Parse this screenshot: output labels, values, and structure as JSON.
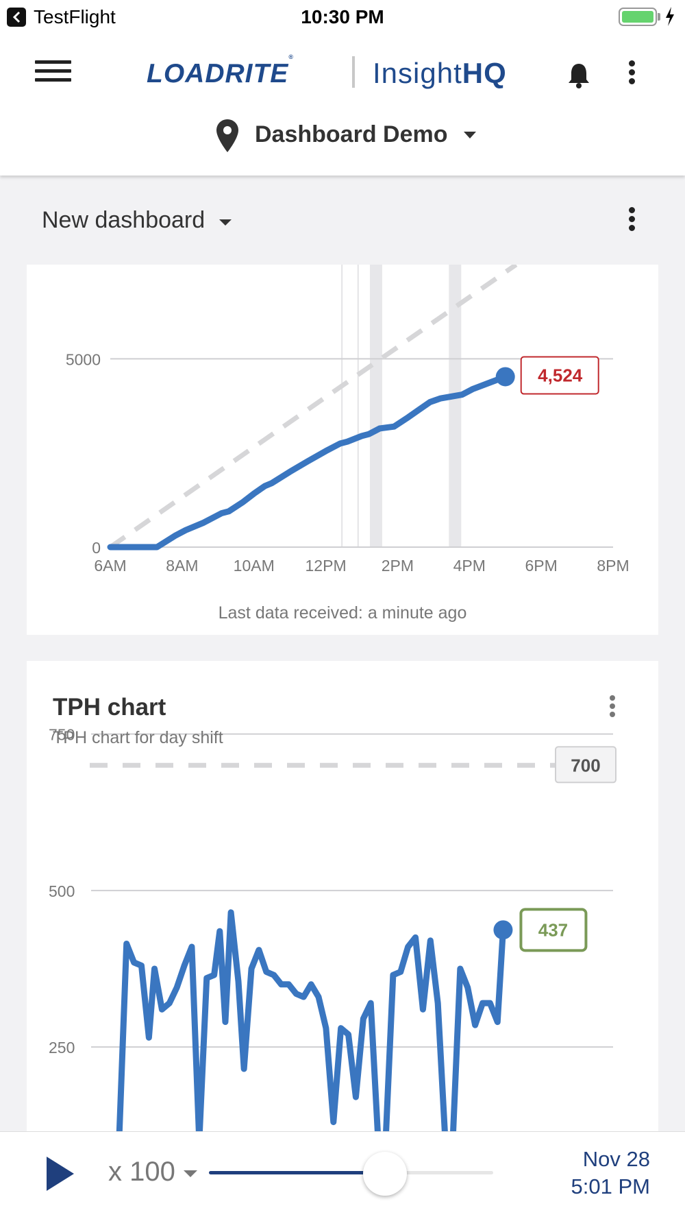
{
  "status_bar": {
    "back_app": "TestFlight",
    "time": "10:30 PM",
    "icons": [
      "back-arrow-icon",
      "battery-icon",
      "charging-bolt-icon"
    ]
  },
  "header": {
    "brand": "LOADRITE",
    "brand_mark": "®",
    "product_light": "Insight",
    "product_bold": "HQ",
    "site": "Dashboard Demo",
    "icons": [
      "hamburger-menu-icon",
      "bell-icon",
      "more-vertical-icon",
      "map-pin-icon",
      "caret-down-icon"
    ]
  },
  "dashboard": {
    "title": "New dashboard"
  },
  "colors": {
    "brand_blue": "#1f4a8c",
    "series_blue": "#3a76c0",
    "target_gray": "#d6d6d8",
    "value_red": "#c0282d",
    "value_green": "#7a9a57"
  },
  "cumulative_card": {
    "last_data": "Last data received: a minute ago"
  },
  "tph_card": {
    "title": "TPH chart",
    "subtitle": "TPH chart for day shift"
  },
  "chart_data": [
    {
      "type": "line",
      "title": "",
      "x_ticks": [
        "6AM",
        "8AM",
        "10AM",
        "12PM",
        "2PM",
        "4PM",
        "6PM",
        "8PM"
      ],
      "y_ticks": [
        0,
        5000
      ],
      "xlim": [
        6,
        20
      ],
      "ylim": [
        0,
        7500
      ],
      "grid": "horizontal",
      "series": [
        {
          "style": "solid",
          "x": [
            6,
            7.3,
            7.8,
            8.1,
            8.6,
            9.1,
            9.3,
            9.7,
            10,
            10.3,
            10.5,
            11,
            11.5,
            12,
            12.4,
            12.6,
            13,
            13.2,
            13.5,
            13.9,
            14.3,
            14.6,
            14.9,
            15.2,
            15.5,
            15.8,
            16.1,
            16.6,
            17.0
          ],
          "y": [
            0,
            0,
            300,
            450,
            650,
            900,
            950,
            1200,
            1420,
            1620,
            1700,
            2000,
            2280,
            2550,
            2750,
            2800,
            2950,
            3000,
            3150,
            3200,
            3450,
            3650,
            3850,
            3950,
            4000,
            4050,
            4200,
            4380,
            4524
          ]
        },
        {
          "style": "dashed",
          "x": [
            6,
            17.3
          ],
          "y": [
            0,
            7500
          ]
        }
      ],
      "vertical_bands_x": [
        13.4,
        15.6
      ],
      "vertical_lines_x": [
        12.45,
        12.9
      ],
      "value_label": "4,524"
    },
    {
      "type": "line",
      "title": "TPH chart",
      "y_ticks": [
        250,
        500,
        750
      ],
      "ylim": [
        100,
        800
      ],
      "xlim": [
        6,
        20
      ],
      "grid": "horizontal",
      "target_value": 700,
      "target_label": "700",
      "value_label": "437",
      "series": [
        {
          "style": "solid",
          "x": [
            6.75,
            6.95,
            7.15,
            7.35,
            7.55,
            7.7,
            7.9,
            8.1,
            8.3,
            8.5,
            8.7,
            8.9,
            9.1,
            9.3,
            9.45,
            9.6,
            9.75,
            9.95,
            10.1,
            10.3,
            10.5,
            10.7,
            10.9,
            11.1,
            11.3,
            11.5,
            11.7,
            11.9,
            12.1,
            12.3,
            12.5,
            12.7,
            12.9,
            13.1,
            13.3,
            13.5,
            13.7,
            13.9,
            14.1,
            14.3,
            14.5,
            14.7,
            14.9,
            15.1,
            15.3,
            15.5,
            15.7,
            15.9,
            16.1,
            16.3,
            16.5,
            16.7,
            16.9,
            17.05
          ],
          "y": [
            100,
            415,
            385,
            380,
            265,
            375,
            310,
            320,
            345,
            380,
            410,
            100,
            360,
            365,
            435,
            290,
            465,
            355,
            215,
            375,
            405,
            370,
            365,
            350,
            350,
            335,
            330,
            350,
            330,
            280,
            130,
            280,
            270,
            170,
            295,
            320,
            100,
            100,
            365,
            370,
            410,
            425,
            310,
            420,
            320,
            100,
            100,
            375,
            345,
            285,
            320,
            320,
            290,
            437
          ]
        }
      ]
    }
  ],
  "playback": {
    "speed": "x 100",
    "progress": 0.62,
    "date": "Nov 28",
    "time": "5:01 PM",
    "icons": [
      "play-icon",
      "caret-down-icon"
    ]
  }
}
